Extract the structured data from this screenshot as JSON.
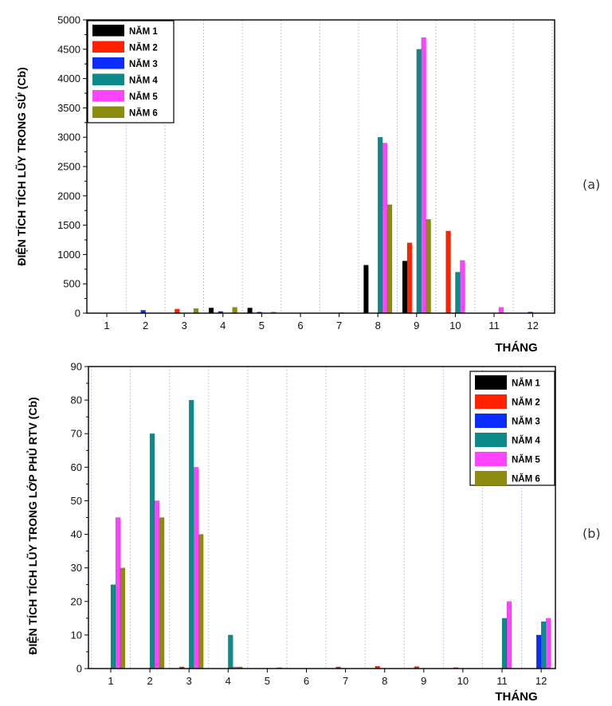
{
  "chart_data": [
    {
      "type": "bar",
      "panel_label": "(a)",
      "ylabel": "ĐIỆN TÍCH TÍCH LŨY TRONG SỨ (Cb)",
      "xlabel": "THÁNG",
      "categories": [
        "1",
        "2",
        "3",
        "4",
        "5",
        "6",
        "7",
        "8",
        "9",
        "10",
        "11",
        "12"
      ],
      "ylim": [
        0,
        5000
      ],
      "yticks": [
        0,
        500,
        1000,
        1500,
        2000,
        2500,
        3000,
        3500,
        4000,
        4500,
        5000
      ],
      "grid": "vertical-dotted",
      "legend_position": "top-left",
      "series": [
        {
          "name": "NĂM 1",
          "color": "#000000",
          "values": [
            0,
            0,
            0,
            90,
            90,
            0,
            0,
            820,
            890,
            0,
            0,
            0
          ]
        },
        {
          "name": "NĂM 2",
          "color": "#ff2200",
          "values": [
            0,
            0,
            70,
            0,
            0,
            0,
            0,
            0,
            1200,
            1400,
            0,
            0
          ]
        },
        {
          "name": "NĂM 3",
          "color": "#0a2cff",
          "values": [
            0,
            50,
            0,
            30,
            20,
            0,
            0,
            0,
            0,
            0,
            0,
            20
          ]
        },
        {
          "name": "NĂM 4",
          "color": "#0c8a8a",
          "values": [
            0,
            0,
            0,
            0,
            0,
            0,
            10,
            3000,
            4500,
            700,
            0,
            0
          ]
        },
        {
          "name": "NĂM 5",
          "color": "#ff44ff",
          "values": [
            0,
            0,
            0,
            0,
            0,
            0,
            0,
            2900,
            4700,
            900,
            100,
            0
          ]
        },
        {
          "name": "NĂM 6",
          "color": "#8c8c10",
          "values": [
            0,
            0,
            80,
            100,
            20,
            0,
            0,
            1850,
            1600,
            0,
            0,
            0
          ]
        }
      ]
    },
    {
      "type": "bar",
      "panel_label": "(b)",
      "ylabel": "ĐIỆN TÍCH TÍCH LŨY TRONG LỚP PHỦ RTV (Cb)",
      "xlabel": "THÁNG",
      "categories": [
        "1",
        "2",
        "3",
        "4",
        "5",
        "6",
        "7",
        "8",
        "9",
        "10",
        "11",
        "12"
      ],
      "ylim": [
        0,
        90
      ],
      "yticks": [
        0,
        10,
        20,
        30,
        40,
        50,
        60,
        70,
        80,
        90
      ],
      "grid": "vertical-dotted",
      "legend_position": "top-right",
      "series": [
        {
          "name": "NĂM 1",
          "color": "#000000",
          "values": [
            0,
            0,
            0,
            0,
            0,
            0,
            0,
            0,
            0,
            0,
            0,
            0
          ]
        },
        {
          "name": "NĂM 2",
          "color": "#ff2200",
          "values": [
            0,
            0,
            0.5,
            0,
            0,
            0,
            0.5,
            0.7,
            0.6,
            0.3,
            0,
            0
          ]
        },
        {
          "name": "NĂM 3",
          "color": "#0a2cff",
          "values": [
            0,
            0,
            0,
            0,
            0,
            0,
            0,
            0,
            0,
            0,
            0,
            10
          ]
        },
        {
          "name": "NĂM 4",
          "color": "#0c8a8a",
          "values": [
            25,
            70,
            80,
            10,
            0,
            0,
            0,
            0,
            0,
            0,
            15,
            14
          ]
        },
        {
          "name": "NĂM 5",
          "color": "#ff44ff",
          "values": [
            45,
            50,
            60,
            0.5,
            0,
            0,
            0,
            0,
            0,
            0,
            20,
            15
          ]
        },
        {
          "name": "NĂM 6",
          "color": "#8c8c10",
          "values": [
            30,
            45,
            40,
            0.5,
            0.3,
            0,
            0,
            0,
            0,
            0,
            0,
            0
          ]
        }
      ]
    }
  ]
}
